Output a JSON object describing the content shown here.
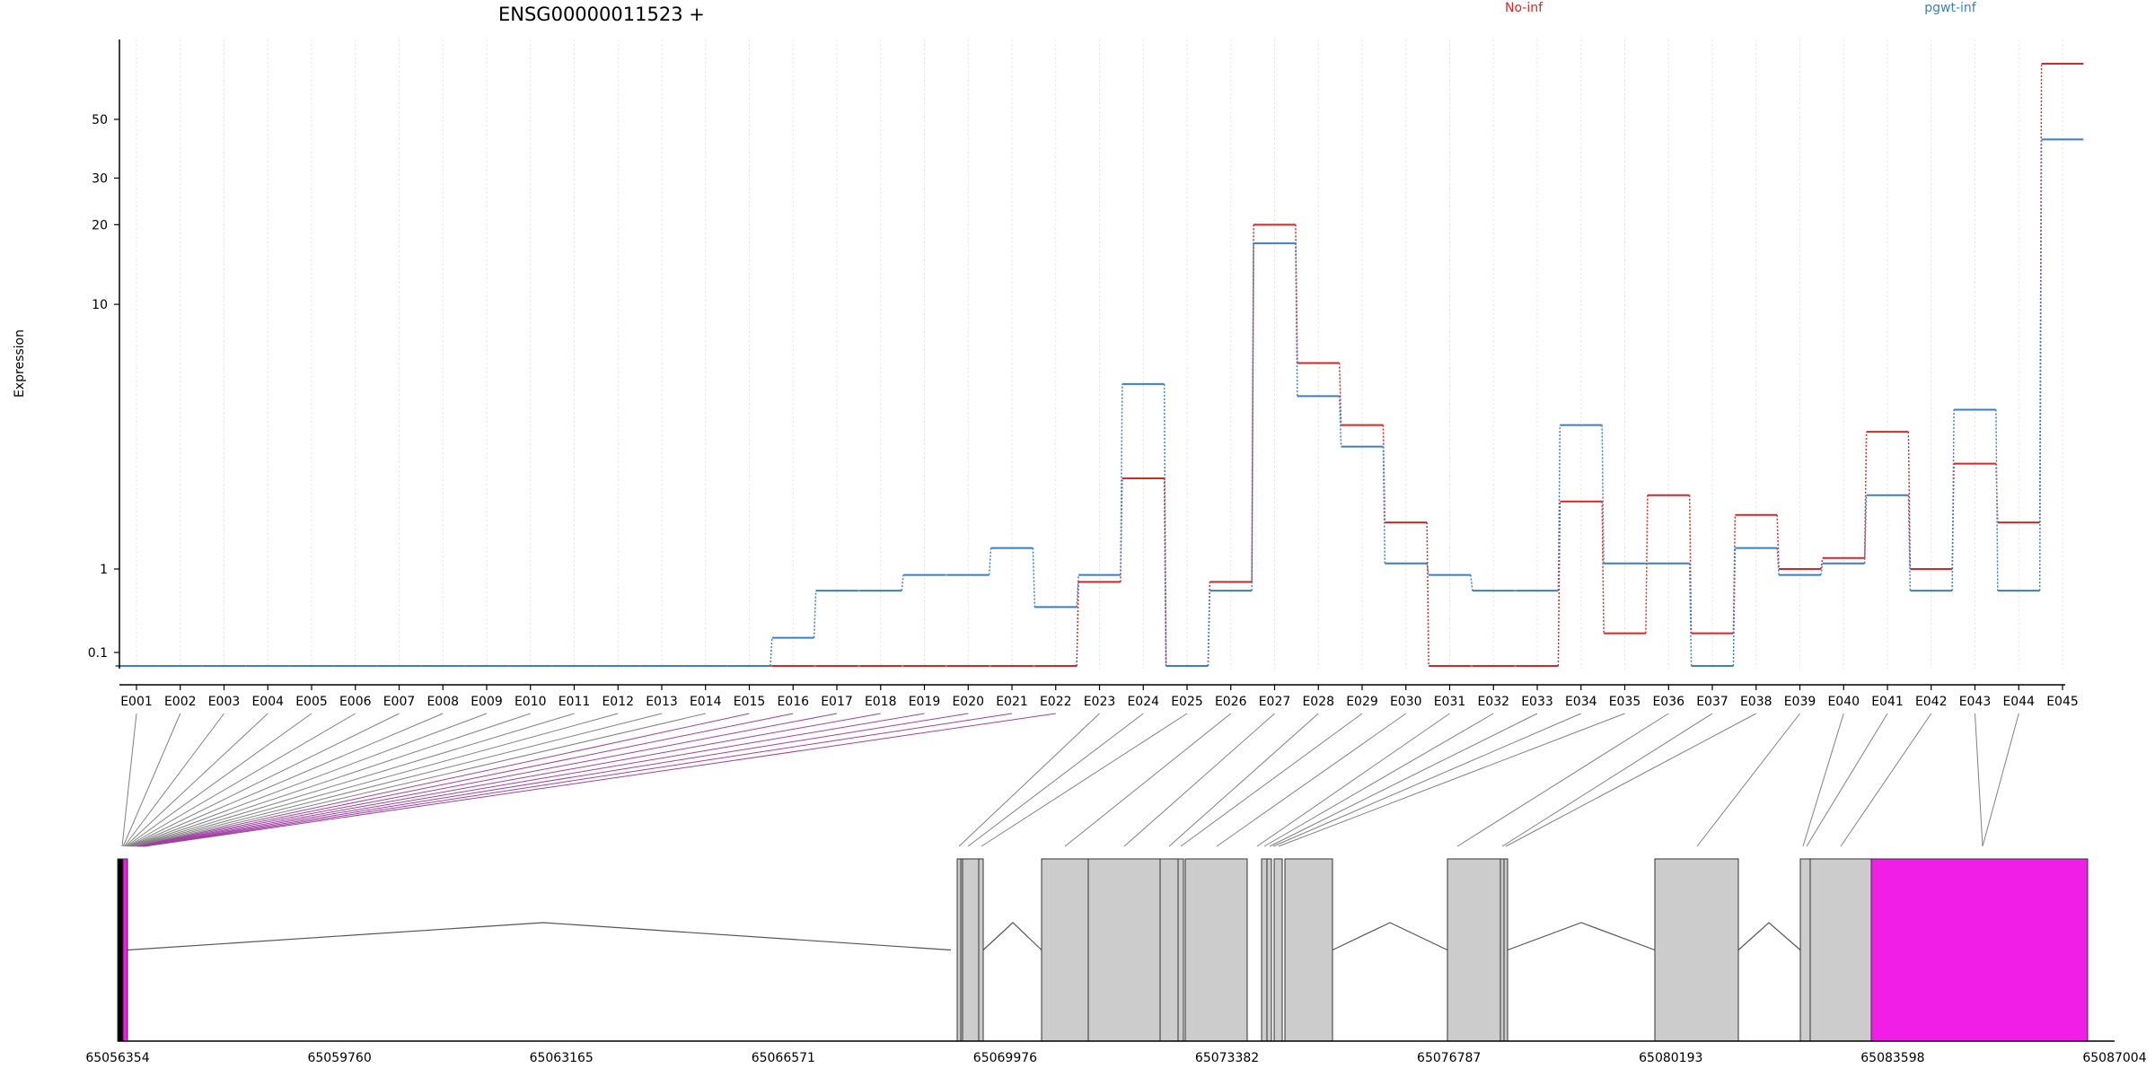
{
  "chart_data": {
    "type": "line",
    "title": "ENSG00000011523 +",
    "ylabel": "Expression",
    "y_scale": "log",
    "y_ticks": [
      0.1,
      1,
      10,
      20,
      30,
      50
    ],
    "y_tick_labels": [
      "0.1",
      "1",
      "10",
      "20",
      "30",
      "50"
    ],
    "grid": "vertical dotted lines at each exon",
    "legend_placement": "top-right",
    "categories": [
      "E001",
      "E002",
      "E003",
      "E004",
      "E005",
      "E006",
      "E007",
      "E008",
      "E009",
      "E010",
      "E011",
      "E012",
      "E013",
      "E014",
      "E015",
      "E016",
      "E017",
      "E018",
      "E019",
      "E020",
      "E021",
      "E022",
      "E023",
      "E024",
      "E025",
      "E026",
      "E027",
      "E028",
      "E029",
      "E030",
      "E031",
      "E032",
      "E033",
      "E034",
      "E035",
      "E036",
      "E037",
      "E038",
      "E039",
      "E040",
      "E041",
      "E042",
      "E043",
      "E044",
      "E045"
    ],
    "series": [
      {
        "name": "No-inf",
        "color": "#d62728",
        "values": [
          0.08,
          0.08,
          0.08,
          0.08,
          0.08,
          0.08,
          0.08,
          0.08,
          0.08,
          0.08,
          0.08,
          0.08,
          0.08,
          0.08,
          0.08,
          0.08,
          0.08,
          0.08,
          0.08,
          0.08,
          0.08,
          0.08,
          0.7,
          2.2,
          0.08,
          0.7,
          20,
          6,
          3.5,
          1.5,
          0.08,
          0.08,
          0.08,
          1.8,
          0.17,
          1.9,
          0.17,
          1.6,
          1,
          1.1,
          3.3,
          1,
          2.5,
          1.5,
          70
        ]
      },
      {
        "name": "pgwt-inf",
        "color": "#3a7fc4",
        "values": [
          0.08,
          0.08,
          0.08,
          0.08,
          0.08,
          0.08,
          0.08,
          0.08,
          0.08,
          0.08,
          0.08,
          0.08,
          0.08,
          0.08,
          0.08,
          0.15,
          0.55,
          0.55,
          0.85,
          0.85,
          1.2,
          0.35,
          0.85,
          5,
          0.08,
          0.55,
          17,
          4.5,
          2.9,
          1.05,
          0.85,
          0.55,
          0.55,
          3.5,
          1.05,
          1.05,
          0.08,
          1.2,
          0.85,
          1.05,
          1.9,
          0.55,
          4,
          0.55,
          42
        ]
      }
    ],
    "gene_axis": {
      "tick_labels": [
        "65056354",
        "65059760",
        "65063165",
        "65066571",
        "65069976",
        "65073382",
        "65076787",
        "65080193",
        "65083598",
        "65087004"
      ]
    },
    "colors": {
      "exon_fill": "#cccccc",
      "highlight_fill": "#f01ee6",
      "axis": "#000000",
      "connector": "#808080",
      "connector_highlight": "#a040a0"
    }
  }
}
